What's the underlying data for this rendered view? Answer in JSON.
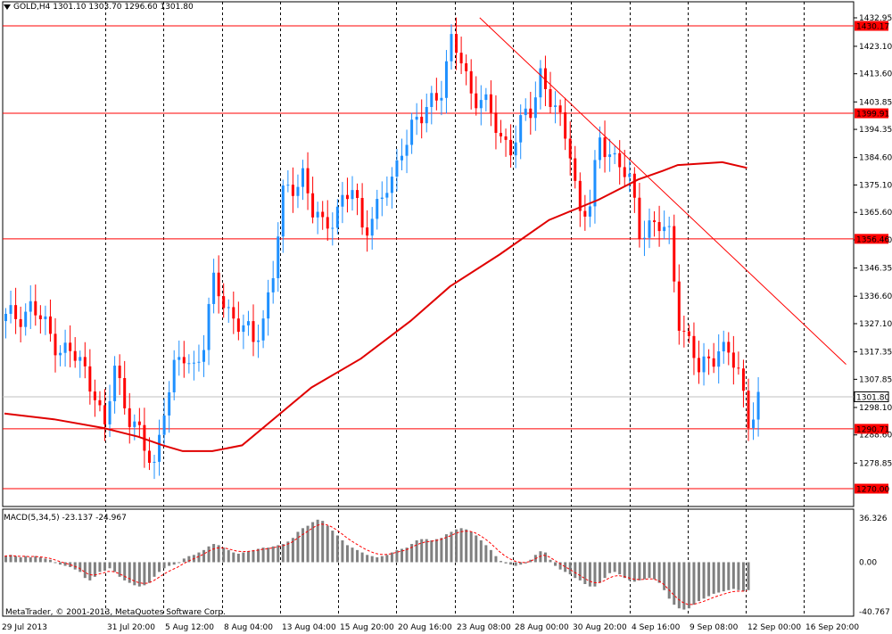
{
  "header": {
    "symbol_tf": "GOLD,H4",
    "ohlc": "1301.10 1303.70 1296.60 1301.80"
  },
  "macd": {
    "label": "MACD(5,34,5) -23.137 -24.967"
  },
  "footer": {
    "copyright": "MetaTrader, © 2001-2013, MetaQuotes Software Corp."
  },
  "chart_data": [
    {
      "type": "candlestick",
      "title": "GOLD,H4",
      "ylim": [
        1270,
        1432.95
      ],
      "y_ticks": [
        "1432.95",
        "1423.10",
        "1413.60",
        "1403.85",
        "1394.35",
        "1384.60",
        "1375.10",
        "1365.60",
        "1356.10",
        "1346.35",
        "1336.60",
        "1327.10",
        "1317.35",
        "1307.85",
        "1298.10",
        "1288.60",
        "1278.85"
      ],
      "x_ticks": [
        "29 Jul 2013",
        "31 Jul 20:00",
        "5 Aug 12:00",
        "8 Aug 04:00",
        "13 Aug 04:00",
        "15 Aug 20:00",
        "20 Aug 16:00",
        "23 Aug 08:00",
        "28 Aug 00:00",
        "30 Aug 20:00",
        "4 Sep 16:00",
        "9 Sep 08:00",
        "12 Sep 00:00",
        "16 Sep 20:00"
      ],
      "levels": [
        {
          "value": 1430.17,
          "label": "1430.17"
        },
        {
          "value": 1399.91,
          "label": "1399.91"
        },
        {
          "value": 1356.46,
          "label": "1356.46"
        },
        {
          "value": 1290.71,
          "label": "1290.71"
        },
        {
          "value": 1270.0,
          "label": "1270.00"
        }
      ],
      "current_price": {
        "value": 1301.8,
        "label": "1301.80"
      },
      "trendline": {
        "from": {
          "bar": 96,
          "price": 1433
        },
        "to": {
          "bar": 170,
          "price": 1313
        }
      },
      "moving_average": [
        [
          0,
          1296
        ],
        [
          10,
          1294
        ],
        [
          20,
          1291
        ],
        [
          27,
          1288
        ],
        [
          32,
          1285
        ],
        [
          36,
          1283
        ],
        [
          42,
          1283
        ],
        [
          48,
          1285
        ],
        [
          55,
          1295
        ],
        [
          62,
          1305
        ],
        [
          72,
          1315
        ],
        [
          82,
          1328
        ],
        [
          90,
          1340
        ],
        [
          100,
          1351
        ],
        [
          110,
          1363
        ],
        [
          120,
          1370
        ],
        [
          128,
          1377
        ],
        [
          133,
          1380
        ],
        [
          136,
          1382
        ],
        [
          145,
          1383
        ],
        [
          150,
          1381
        ]
      ],
      "price_path": [
        [
          0,
          1328
        ],
        [
          5,
          1333
        ],
        [
          9,
          1323
        ],
        [
          12,
          1318
        ],
        [
          15,
          1313
        ],
        [
          18,
          1305
        ],
        [
          20,
          1289
        ],
        [
          22,
          1312
        ],
        [
          24,
          1300
        ],
        [
          26,
          1293
        ],
        [
          28,
          1282
        ],
        [
          30,
          1278
        ],
        [
          32,
          1300
        ],
        [
          34,
          1310
        ],
        [
          36,
          1315
        ],
        [
          38,
          1313
        ],
        [
          40,
          1321
        ],
        [
          42,
          1340
        ],
        [
          44,
          1335
        ],
        [
          46,
          1330
        ],
        [
          48,
          1325
        ],
        [
          50,
          1320
        ],
        [
          52,
          1330
        ],
        [
          54,
          1345
        ],
        [
          56,
          1370
        ],
        [
          58,
          1375
        ],
        [
          60,
          1380
        ],
        [
          62,
          1365
        ],
        [
          64,
          1360
        ],
        [
          66,
          1365
        ],
        [
          68,
          1370
        ],
        [
          70,
          1372
        ],
        [
          72,
          1361
        ],
        [
          74,
          1365
        ],
        [
          76,
          1370
        ],
        [
          78,
          1375
        ],
        [
          80,
          1390
        ],
        [
          82,
          1395
        ],
        [
          84,
          1397
        ],
        [
          86,
          1405
        ],
        [
          88,
          1410
        ],
        [
          90,
          1423
        ],
        [
          92,
          1418
        ],
        [
          94,
          1408
        ],
        [
          96,
          1405
        ],
        [
          98,
          1398
        ],
        [
          100,
          1392
        ],
        [
          102,
          1389
        ],
        [
          104,
          1395
        ],
        [
          106,
          1400
        ],
        [
          108,
          1415
        ],
        [
          110,
          1405
        ],
        [
          112,
          1395
        ],
        [
          114,
          1388
        ],
        [
          116,
          1366
        ],
        [
          118,
          1367
        ],
        [
          120,
          1390
        ],
        [
          122,
          1388
        ],
        [
          124,
          1382
        ],
        [
          126,
          1375
        ],
        [
          128,
          1360
        ],
        [
          130,
          1362
        ],
        [
          132,
          1360
        ],
        [
          134,
          1357
        ],
        [
          136,
          1330
        ],
        [
          138,
          1320
        ],
        [
          140,
          1310
        ],
        [
          142,
          1315
        ],
        [
          144,
          1320
        ],
        [
          146,
          1315
        ],
        [
          148,
          1310
        ],
        [
          150,
          1295
        ],
        [
          152,
          1301
        ]
      ]
    },
    {
      "type": "bar",
      "title": "MACD(5,34,5) -23.137 -24.967",
      "ylim": [
        -40.767,
        36.326
      ],
      "y_ticks": [
        "36.326",
        "0.00",
        "-40.767"
      ],
      "series": [
        {
          "name": "MACD",
          "kind": "histogram"
        },
        {
          "name": "Signal",
          "kind": "line",
          "color": "#ff0000",
          "dashed": true
        }
      ],
      "macd_values": [
        5,
        6,
        5,
        4,
        5,
        4,
        5,
        4,
        3,
        2,
        0,
        -2,
        -3,
        -4,
        -6,
        -8,
        -13,
        -15,
        -12,
        -8,
        -7,
        -5,
        -8,
        -12,
        -15,
        -17,
        -19,
        -20,
        -19,
        -17,
        -12,
        -8,
        -5,
        -3,
        -2,
        0,
        3,
        5,
        6,
        8,
        10,
        13,
        15,
        14,
        12,
        10,
        8,
        7,
        8,
        9,
        10,
        11,
        12,
        12,
        13,
        14,
        15,
        17,
        20,
        25,
        28,
        30,
        33,
        35,
        34,
        30,
        26,
        22,
        18,
        14,
        12,
        10,
        8,
        6,
        5,
        4,
        5,
        6,
        8,
        10,
        11,
        12,
        15,
        18,
        19,
        19,
        18,
        19,
        20,
        23,
        25,
        27,
        28,
        27,
        25,
        22,
        18,
        14,
        10,
        5,
        1,
        -1,
        -2,
        -3,
        -2,
        -1,
        2,
        6,
        9,
        8,
        2,
        -3,
        -6,
        -8,
        -10,
        -13,
        -15,
        -18,
        -20,
        -20,
        -17,
        -13,
        -9,
        -8,
        -10,
        -13,
        -15,
        -16,
        -15,
        -14,
        -13,
        -14,
        -17,
        -23,
        -30,
        -35,
        -38,
        -39,
        -38,
        -35,
        -32,
        -30,
        -28,
        -26,
        -25,
        -24,
        -23,
        -22,
        -23,
        -24,
        -23
      ]
    }
  ],
  "colors": {
    "bull": "#1e90ff",
    "bear": "#ff0000",
    "ma": "#e00000",
    "level": "#ff0000",
    "hist": "#808080",
    "grid": "#000000"
  }
}
